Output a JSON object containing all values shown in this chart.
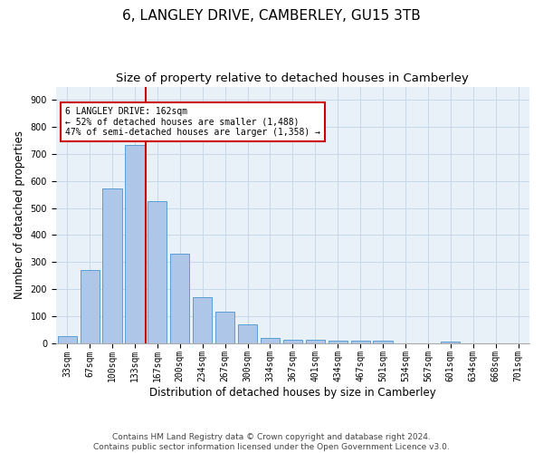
{
  "title": "6, LANGLEY DRIVE, CAMBERLEY, GU15 3TB",
  "subtitle": "Size of property relative to detached houses in Camberley",
  "xlabel": "Distribution of detached houses by size in Camberley",
  "ylabel": "Number of detached properties",
  "categories": [
    "33sqm",
    "67sqm",
    "100sqm",
    "133sqm",
    "167sqm",
    "200sqm",
    "234sqm",
    "267sqm",
    "300sqm",
    "334sqm",
    "367sqm",
    "401sqm",
    "434sqm",
    "467sqm",
    "501sqm",
    "534sqm",
    "567sqm",
    "601sqm",
    "634sqm",
    "668sqm",
    "701sqm"
  ],
  "values": [
    25,
    270,
    572,
    735,
    527,
    332,
    170,
    115,
    68,
    20,
    13,
    13,
    10,
    8,
    7,
    0,
    0,
    6,
    0,
    0,
    0
  ],
  "bar_color": "#aec6e8",
  "bar_edge_color": "#5a9fd4",
  "property_line_color": "#cc0000",
  "annotation_text": "6 LANGLEY DRIVE: 162sqm\n← 52% of detached houses are smaller (1,488)\n47% of semi-detached houses are larger (1,358) →",
  "annotation_box_color": "#ffffff",
  "annotation_box_edge_color": "#cc0000",
  "ylim": [
    0,
    950
  ],
  "yticks": [
    0,
    100,
    200,
    300,
    400,
    500,
    600,
    700,
    800,
    900
  ],
  "footer_line1": "Contains HM Land Registry data © Crown copyright and database right 2024.",
  "footer_line2": "Contains public sector information licensed under the Open Government Licence v3.0.",
  "bg_color": "#ffffff",
  "plot_bg_color": "#e8f0f8",
  "grid_color": "#c8d8e8",
  "title_fontsize": 11,
  "subtitle_fontsize": 9.5,
  "axis_label_fontsize": 8.5,
  "tick_fontsize": 7,
  "annotation_fontsize": 7,
  "footer_fontsize": 6.5
}
